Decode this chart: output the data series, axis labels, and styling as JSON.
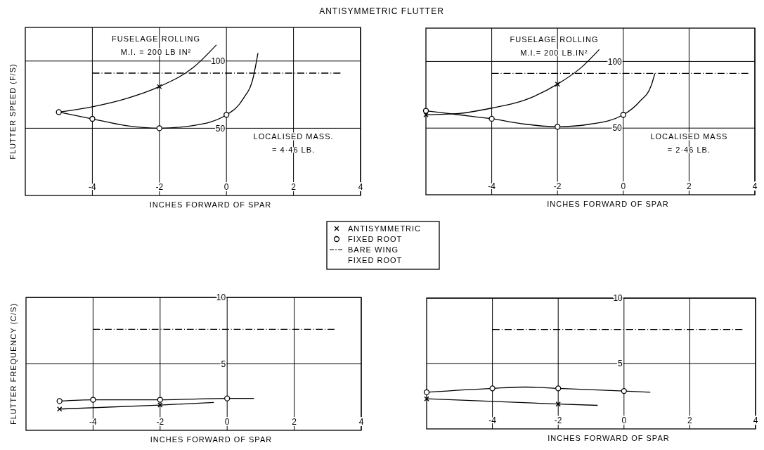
{
  "chart_data": [
    {
      "type": "line",
      "title": "ANTISYMMETRIC FLUTTER",
      "xlabel": "INCHES FORWARD OF SPAR",
      "ylabel": "FLUTTER SPEED (F/S)",
      "xlim": [
        -6,
        4
      ],
      "ylim": [
        0,
        125
      ],
      "xticks": [
        -4,
        -2,
        0,
        2,
        4
      ],
      "yticks": [
        50,
        100
      ],
      "grid": true,
      "legend": "bottom right",
      "annotations": [
        "FUSELAGE ROLLING",
        "M.I. = 200 LB IN²",
        "LOCALISED MASS.",
        "= 4·46 LB."
      ],
      "series": [
        {
          "type": "scatter",
          "name": "ANTISYMMETRIC",
          "color": "#000000",
          "marker": "cross",
          "x": [
            -2
          ],
          "values": [
            81
          ]
        },
        {
          "type": "scatter",
          "name": "FIXED ROOT",
          "color": "#000000",
          "marker": "circle",
          "x": [
            -5,
            -4,
            -2,
            0
          ],
          "values": [
            62,
            57,
            50,
            60
          ]
        },
        {
          "type": "line",
          "name": "BARE WING FIXED ROOT",
          "color": "#000000",
          "marker": "none",
          "line_style": "dashed",
          "x": [
            -4,
            3.4
          ],
          "values": [
            91,
            91
          ]
        },
        {
          "type": "line",
          "color": "#000000",
          "marker": "none",
          "x": [
            -5,
            -4,
            -3,
            -2,
            -1,
            -0.3
          ],
          "values": [
            62,
            66,
            72,
            81,
            95,
            112
          ]
        },
        {
          "type": "line",
          "color": "#000000",
          "marker": "none",
          "x": [
            -5,
            -4,
            -3,
            -2,
            -1,
            0,
            0.5,
            0.8,
            0.94
          ],
          "values": [
            62,
            57,
            52,
            50,
            52,
            60,
            72,
            88,
            106
          ]
        }
      ]
    },
    {
      "type": "line",
      "xlabel": "INCHES FORWARD OF SPAR",
      "xlim": [
        -6,
        4
      ],
      "ylim": [
        0,
        125
      ],
      "xticks": [
        -4,
        -2,
        0,
        2,
        4
      ],
      "yticks": [
        50,
        100
      ],
      "grid": true,
      "annotations": [
        "FUSELAGE ROLLING",
        "M.I.= 200 LB.IN²",
        "LOCALISED MASS",
        "= 2·46 LB."
      ],
      "series": [
        {
          "type": "line",
          "color": "#000000",
          "marker": "none",
          "x": [
            -6,
            -5,
            -4,
            -3,
            -2,
            -1.3,
            -0.73
          ],
          "values": [
            60,
            61,
            65,
            71,
            83,
            95,
            109
          ]
        },
        {
          "type": "line",
          "color": "#000000",
          "marker": "none",
          "x": [
            -6,
            -5,
            -4,
            -3,
            -2,
            -1,
            0,
            0.5,
            0.85,
            0.96
          ],
          "values": [
            63,
            60,
            57,
            53,
            51,
            53,
            60,
            70,
            82,
            91
          ]
        },
        {
          "type": "line",
          "color": "#000000",
          "marker": "none",
          "line_style": "dashed",
          "x": [
            -4,
            3.8
          ],
          "values": [
            91,
            91
          ]
        },
        {
          "type": "scatter",
          "color": "#000000",
          "marker": "cross",
          "x": [
            -6,
            -2
          ],
          "values": [
            60,
            83
          ]
        },
        {
          "type": "scatter",
          "color": "#000000",
          "marker": "circle",
          "x": [
            -6,
            -4,
            -2,
            0
          ],
          "values": [
            63,
            57,
            51,
            60
          ]
        }
      ]
    },
    {
      "type": "line",
      "xlabel": "INCHES FORWARD OF SPAR",
      "ylabel": "FLUTTER FREQUENCY (C/S)",
      "xlim": [
        -6,
        4
      ],
      "ylim": [
        0,
        10
      ],
      "xticks": [
        -4,
        -2,
        0,
        2,
        4
      ],
      "yticks": [
        5,
        10
      ],
      "grid": true,
      "series": [
        {
          "type": "line",
          "color": "#000000",
          "marker": "none",
          "x": [
            -5,
            -2,
            -0.4
          ],
          "values": [
            1.6,
            1.9,
            2.1
          ]
        },
        {
          "type": "line",
          "color": "#000000",
          "marker": "none",
          "x": [
            -5,
            -4,
            -2,
            0,
            0.8
          ],
          "values": [
            2.2,
            2.3,
            2.3,
            2.4,
            2.4
          ]
        },
        {
          "type": "line",
          "color": "#000000",
          "marker": "none",
          "line_style": "dashed",
          "x": [
            -4,
            3.2
          ],
          "values": [
            7.6,
            7.6
          ]
        },
        {
          "type": "scatter",
          "color": "#000000",
          "marker": "cross",
          "x": [
            -5,
            -2
          ],
          "values": [
            1.6,
            1.9
          ]
        },
        {
          "type": "scatter",
          "color": "#000000",
          "marker": "circle",
          "x": [
            -5,
            -4,
            -2,
            0
          ],
          "values": [
            2.2,
            2.3,
            2.3,
            2.4
          ]
        }
      ]
    },
    {
      "type": "line",
      "xlabel": "INCHES FORWARD OF SPAR",
      "xlim": [
        -6,
        4
      ],
      "ylim": [
        0,
        10
      ],
      "xticks": [
        -4,
        -2,
        0,
        2,
        4
      ],
      "yticks": [
        5,
        10
      ],
      "grid": true,
      "series": [
        {
          "type": "line",
          "color": "#000000",
          "marker": "none",
          "x": [
            -6,
            -2,
            -0.8
          ],
          "values": [
            2.3,
            1.9,
            1.8
          ]
        },
        {
          "type": "line",
          "color": "#000000",
          "marker": "none",
          "x": [
            -6,
            -4,
            -3,
            -2,
            0,
            0.8
          ],
          "values": [
            2.8,
            3.1,
            3.2,
            3.1,
            2.9,
            2.8
          ]
        },
        {
          "type": "line",
          "color": "#000000",
          "marker": "none",
          "line_style": "dashed",
          "x": [
            -4,
            3.6
          ],
          "values": [
            7.6,
            7.6
          ]
        },
        {
          "type": "scatter",
          "color": "#000000",
          "marker": "cross",
          "x": [
            -6,
            -2
          ],
          "values": [
            2.3,
            1.9
          ]
        },
        {
          "type": "scatter",
          "color": "#000000",
          "marker": "circle",
          "x": [
            -6,
            -4,
            -2,
            0
          ],
          "values": [
            2.8,
            3.1,
            3.1,
            2.9
          ]
        }
      ]
    }
  ]
}
